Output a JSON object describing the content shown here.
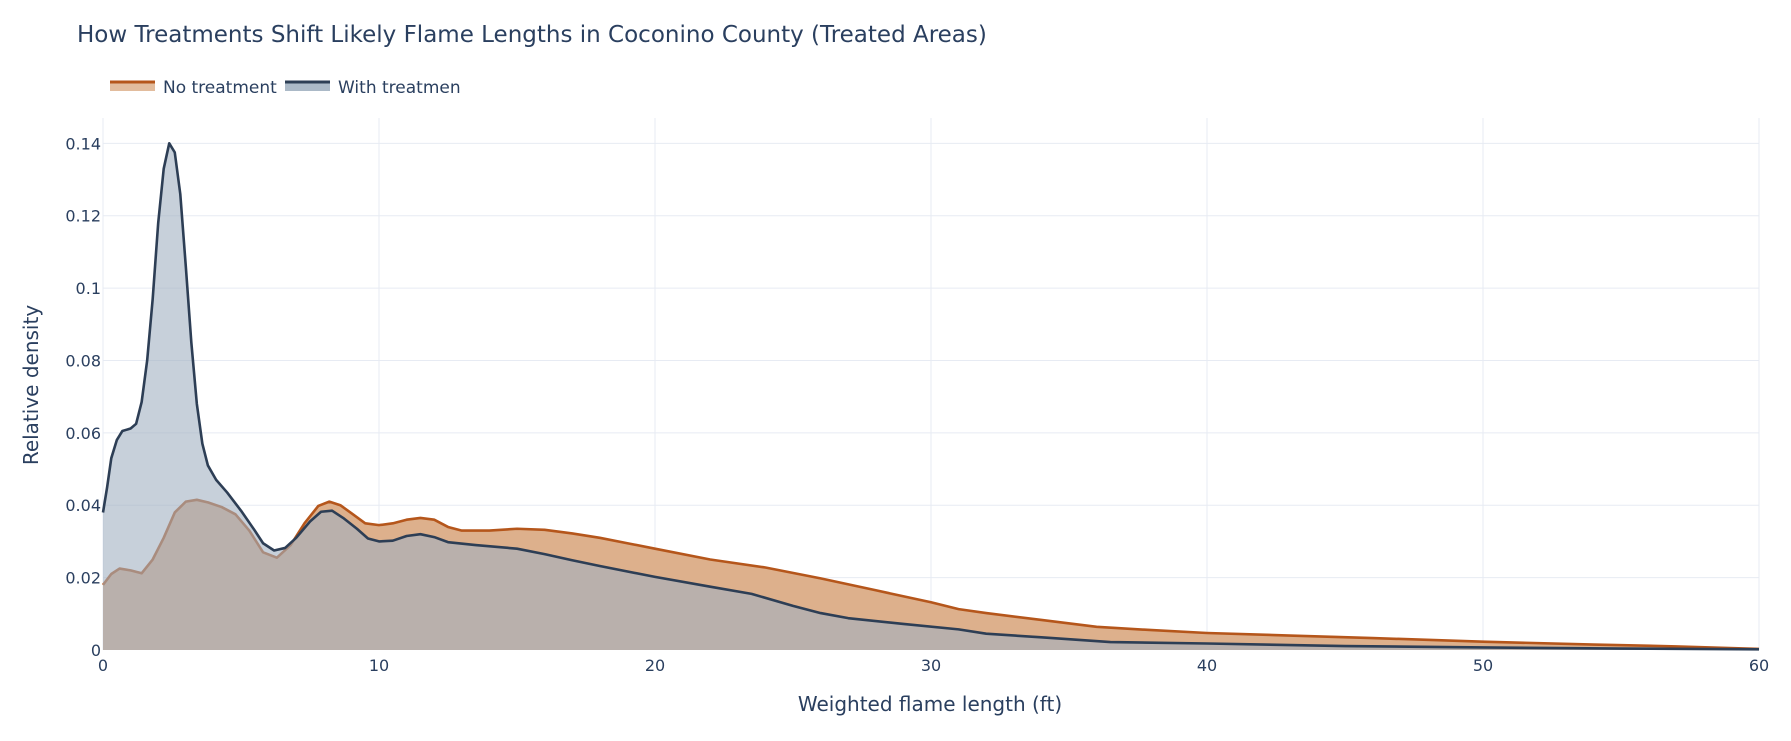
{
  "chart_data": {
    "type": "area",
    "title": "How Treatments Shift Likely Flame Lengths in Coconino County (Treated Areas)",
    "xlabel": "Weighted flame length (ft)",
    "ylabel": "Relative density",
    "xlim": [
      0,
      60
    ],
    "ylim": [
      0,
      0.147
    ],
    "x_ticks": [
      0,
      10,
      20,
      30,
      40,
      50,
      60
    ],
    "x_tick_labels": [
      "0",
      "10",
      "20",
      "30",
      "40",
      "50",
      "60"
    ],
    "y_ticks": [
      0,
      0.02,
      0.04,
      0.06,
      0.08,
      0.1,
      0.12,
      0.14
    ],
    "y_tick_labels": [
      "0",
      "0.02",
      "0.04",
      "0.06",
      "0.08",
      "0.1",
      "0.12",
      "0.14"
    ],
    "grid": true,
    "legend": "top-left, horizontal",
    "series": [
      {
        "name": "No treatment",
        "line_color": "#b5561b",
        "fill_color": "#ddb08c",
        "points": [
          [
            0,
            0.018
          ],
          [
            0.3,
            0.021
          ],
          [
            0.6,
            0.0225
          ],
          [
            1.0,
            0.022
          ],
          [
            1.4,
            0.0212
          ],
          [
            1.8,
            0.025
          ],
          [
            2.2,
            0.031
          ],
          [
            2.6,
            0.038
          ],
          [
            3.0,
            0.041
          ],
          [
            3.4,
            0.0415
          ],
          [
            3.8,
            0.0408
          ],
          [
            4.3,
            0.0395
          ],
          [
            4.8,
            0.0375
          ],
          [
            5.3,
            0.033
          ],
          [
            5.8,
            0.027
          ],
          [
            6.3,
            0.0255
          ],
          [
            6.8,
            0.029
          ],
          [
            7.3,
            0.035
          ],
          [
            7.8,
            0.0398
          ],
          [
            8.2,
            0.041
          ],
          [
            8.6,
            0.04
          ],
          [
            9.0,
            0.0378
          ],
          [
            9.5,
            0.035
          ],
          [
            10.0,
            0.0345
          ],
          [
            10.5,
            0.035
          ],
          [
            11.0,
            0.036
          ],
          [
            11.5,
            0.0365
          ],
          [
            12.0,
            0.036
          ],
          [
            12.5,
            0.034
          ],
          [
            13.0,
            0.033
          ],
          [
            14.0,
            0.033
          ],
          [
            15.0,
            0.0335
          ],
          [
            16.0,
            0.0332
          ],
          [
            17.0,
            0.0322
          ],
          [
            18.0,
            0.031
          ],
          [
            19.0,
            0.0295
          ],
          [
            20.0,
            0.028
          ],
          [
            22.0,
            0.025
          ],
          [
            24.0,
            0.0228
          ],
          [
            26.0,
            0.0198
          ],
          [
            28.0,
            0.0165
          ],
          [
            30.0,
            0.0132
          ],
          [
            31.0,
            0.0113
          ],
          [
            32.0,
            0.0102
          ],
          [
            34.0,
            0.0083
          ],
          [
            36.0,
            0.0064
          ],
          [
            38.0,
            0.0055
          ],
          [
            40.0,
            0.0047
          ],
          [
            43.0,
            0.004
          ],
          [
            46.0,
            0.0033
          ],
          [
            50.0,
            0.0023
          ],
          [
            54.0,
            0.0015
          ],
          [
            57.0,
            0.001
          ],
          [
            60.0,
            0.0003
          ]
        ]
      },
      {
        "name": "With treatmen",
        "line_color": "#2d3e55",
        "fill_color": "#a2b1c1",
        "points": [
          [
            0,
            0.038
          ],
          [
            0.15,
            0.045
          ],
          [
            0.3,
            0.053
          ],
          [
            0.5,
            0.058
          ],
          [
            0.7,
            0.0605
          ],
          [
            1.0,
            0.0612
          ],
          [
            1.2,
            0.0625
          ],
          [
            1.4,
            0.0685
          ],
          [
            1.6,
            0.08
          ],
          [
            1.8,
            0.097
          ],
          [
            2.0,
            0.118
          ],
          [
            2.2,
            0.133
          ],
          [
            2.4,
            0.14
          ],
          [
            2.6,
            0.1375
          ],
          [
            2.8,
            0.126
          ],
          [
            3.0,
            0.106
          ],
          [
            3.2,
            0.085
          ],
          [
            3.4,
            0.068
          ],
          [
            3.6,
            0.057
          ],
          [
            3.8,
            0.051
          ],
          [
            4.1,
            0.047
          ],
          [
            4.5,
            0.0435
          ],
          [
            5.0,
            0.0385
          ],
          [
            5.5,
            0.033
          ],
          [
            5.8,
            0.0295
          ],
          [
            6.2,
            0.0275
          ],
          [
            6.6,
            0.0282
          ],
          [
            7.0,
            0.031
          ],
          [
            7.5,
            0.0355
          ],
          [
            7.9,
            0.0382
          ],
          [
            8.3,
            0.0385
          ],
          [
            8.7,
            0.0365
          ],
          [
            9.2,
            0.0335
          ],
          [
            9.6,
            0.0308
          ],
          [
            10.0,
            0.03
          ],
          [
            10.5,
            0.0302
          ],
          [
            11.0,
            0.0315
          ],
          [
            11.5,
            0.032
          ],
          [
            12.0,
            0.0312
          ],
          [
            12.5,
            0.0298
          ],
          [
            13.5,
            0.029
          ],
          [
            15.0,
            0.028
          ],
          [
            16.0,
            0.0265
          ],
          [
            17.0,
            0.0248
          ],
          [
            18.0,
            0.0232
          ],
          [
            20.0,
            0.0202
          ],
          [
            22.0,
            0.0175
          ],
          [
            23.5,
            0.0155
          ],
          [
            25.0,
            0.0122
          ],
          [
            26.0,
            0.0102
          ],
          [
            27.0,
            0.0088
          ],
          [
            29.0,
            0.0072
          ],
          [
            31.0,
            0.0057
          ],
          [
            32.0,
            0.0045
          ],
          [
            34.0,
            0.0035
          ],
          [
            36.5,
            0.0022
          ],
          [
            40.0,
            0.0018
          ],
          [
            45.0,
            0.0011
          ],
          [
            50.0,
            0.0007
          ],
          [
            55.0,
            0.0004
          ],
          [
            60.0,
            0.0002
          ]
        ]
      }
    ]
  }
}
